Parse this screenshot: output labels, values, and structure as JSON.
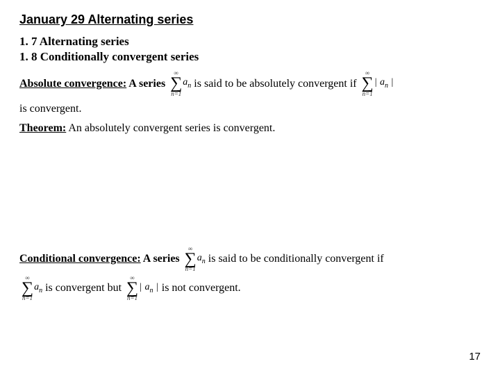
{
  "title": "January 29 Alternating series",
  "sub1": "1. 7 Alternating series",
  "sub2": "1. 8 Conditionally convergent series",
  "abs_conv_label": "Absolute convergence:",
  "abs_text1": " A series",
  "abs_text2": "is said to be absolutely convergent if",
  "body_convergent": "is convergent.",
  "theorem_label": "Theorem:",
  "theorem_text": " An absolutely convergent series is convergent.",
  "cond_conv_label": "Conditional convergence:",
  "cond_text1": " A series",
  "cond_text2": "is said to be conditionally convergent if",
  "cond_line2_a": "is convergent but",
  "cond_line2_b": "is not convergent.",
  "sigma_top": "∞",
  "sigma_bot": "n=1",
  "term_a": "a",
  "term_sub": "n",
  "page_number": "17",
  "colors": {
    "background": "#ffffff",
    "text": "#000000"
  },
  "fonts": {
    "title_family": "Arial",
    "body_family": "Times New Roman",
    "title_size": 18,
    "subhead_size": 17,
    "body_size": 16
  }
}
